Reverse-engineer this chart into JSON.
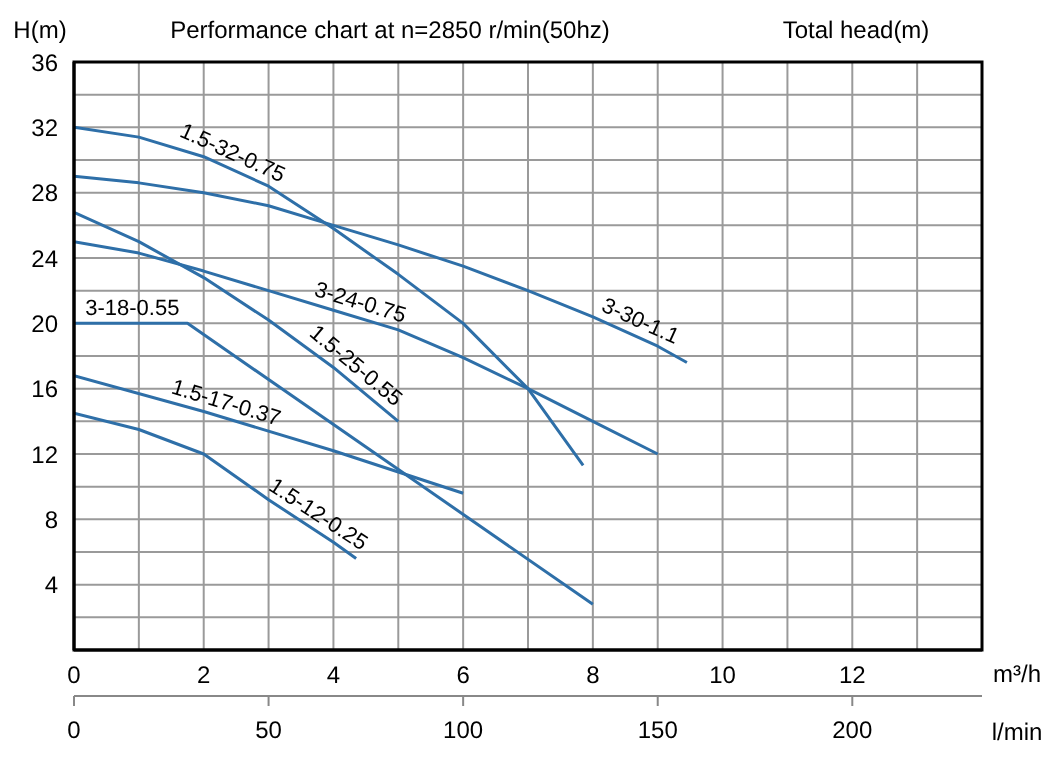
{
  "chart_data": {
    "type": "line",
    "title": "Performance chart at n=2850 r/min(50hz)",
    "xlabel": "m³/h",
    "ylabel": "H(m)",
    "x2label": "l/min",
    "xlim": [
      0,
      14
    ],
    "xticks": [
      0,
      {
        "value": 1,
        "label": null
      },
      2,
      {
        "value": 3,
        "label": null
      },
      4,
      {
        "value": 5,
        "label": null
      },
      6,
      {
        "value": 7,
        "label": null
      },
      8,
      {
        "value": 9,
        "label": null
      },
      10,
      {
        "value": 11,
        "label": null
      },
      12,
      {
        "value": 13,
        "label": null
      },
      {
        "value": 14,
        "label": null
      }
    ],
    "ylim": [
      0,
      36
    ],
    "yticks": [
      {
        "value": 0,
        "label": null
      },
      {
        "value": 2,
        "label": null
      },
      4,
      {
        "value": 6,
        "label": null
      },
      8,
      {
        "value": 10,
        "label": null
      },
      12,
      {
        "value": 14,
        "label": null
      },
      16,
      {
        "value": 18,
        "label": null
      },
      20,
      {
        "value": 22,
        "label": null
      },
      24,
      {
        "value": 26,
        "label": null
      },
      28,
      {
        "value": 30,
        "label": null
      },
      32,
      {
        "value": 34,
        "label": null
      },
      36
    ],
    "x2lim": [
      0,
      233.33
    ],
    "x2ticks": [
      0,
      50,
      100,
      150,
      200
    ],
    "grid": true,
    "marker": "none",
    "line_style": "solid",
    "series": [
      {
        "color": "#2e6fa8",
        "x": [
          0,
          1,
          2,
          3,
          4,
          5,
          6,
          7,
          7.85
        ],
        "values": [
          32,
          31.4,
          30.2,
          28.4,
          25.8,
          23,
          20,
          16,
          11.3
        ]
      },
      {
        "color": "#2e6fa8",
        "x": [
          0,
          1,
          2,
          3,
          4,
          5,
          6,
          7,
          8,
          9,
          9.45
        ],
        "values": [
          29,
          28.6,
          28,
          27.2,
          26,
          24.8,
          23.5,
          22,
          20.4,
          18.6,
          17.6
        ]
      },
      {
        "color": "#2e6fa8",
        "x": [
          0,
          1,
          2,
          3,
          4,
          5,
          6,
          7,
          8,
          9
        ],
        "values": [
          25,
          24.3,
          23.2,
          22,
          20.8,
          19.6,
          17.9,
          16,
          14,
          12
        ]
      },
      {
        "color": "#2e6fa8",
        "x": [
          0,
          1,
          2,
          3,
          4,
          5
        ],
        "values": [
          26.8,
          25,
          22.8,
          20.2,
          17.3,
          14
        ]
      },
      {
        "color": "#2e6fa8",
        "x": [
          0,
          1.75,
          8
        ],
        "values": [
          20,
          20,
          2.8
        ]
      },
      {
        "color": "#2e6fa8",
        "x": [
          0,
          2,
          4,
          5,
          6
        ],
        "values": [
          16.8,
          14.6,
          12.2,
          10.9,
          9.6
        ]
      },
      {
        "color": "#2e6fa8",
        "x": [
          0,
          1,
          2,
          3,
          4,
          4.35
        ],
        "values": [
          14.5,
          13.5,
          12,
          9.2,
          6.6,
          5.6
        ]
      }
    ],
    "annotations": [
      "Total head(m)",
      {
        "text": "1.5-32-0.75",
        "x": 2.35,
        "y": 29.6
      },
      {
        "text": "3-30-1.1",
        "x": 8.64,
        "y": 19.3
      },
      {
        "text": "3-24-0.75",
        "x": 4.35,
        "y": 20.4
      },
      {
        "text": "1.5-25-0.55",
        "x": 4.2,
        "y": 16.7
      },
      {
        "text": "3-18-0.55",
        "x": 0.9,
        "y": 20
      },
      {
        "text": "1.5-17-0.37",
        "x": 2.28,
        "y": 14.26
      },
      {
        "text": "1.5-12-0.25",
        "x": 3.64,
        "y": 7.54
      }
    ]
  }
}
